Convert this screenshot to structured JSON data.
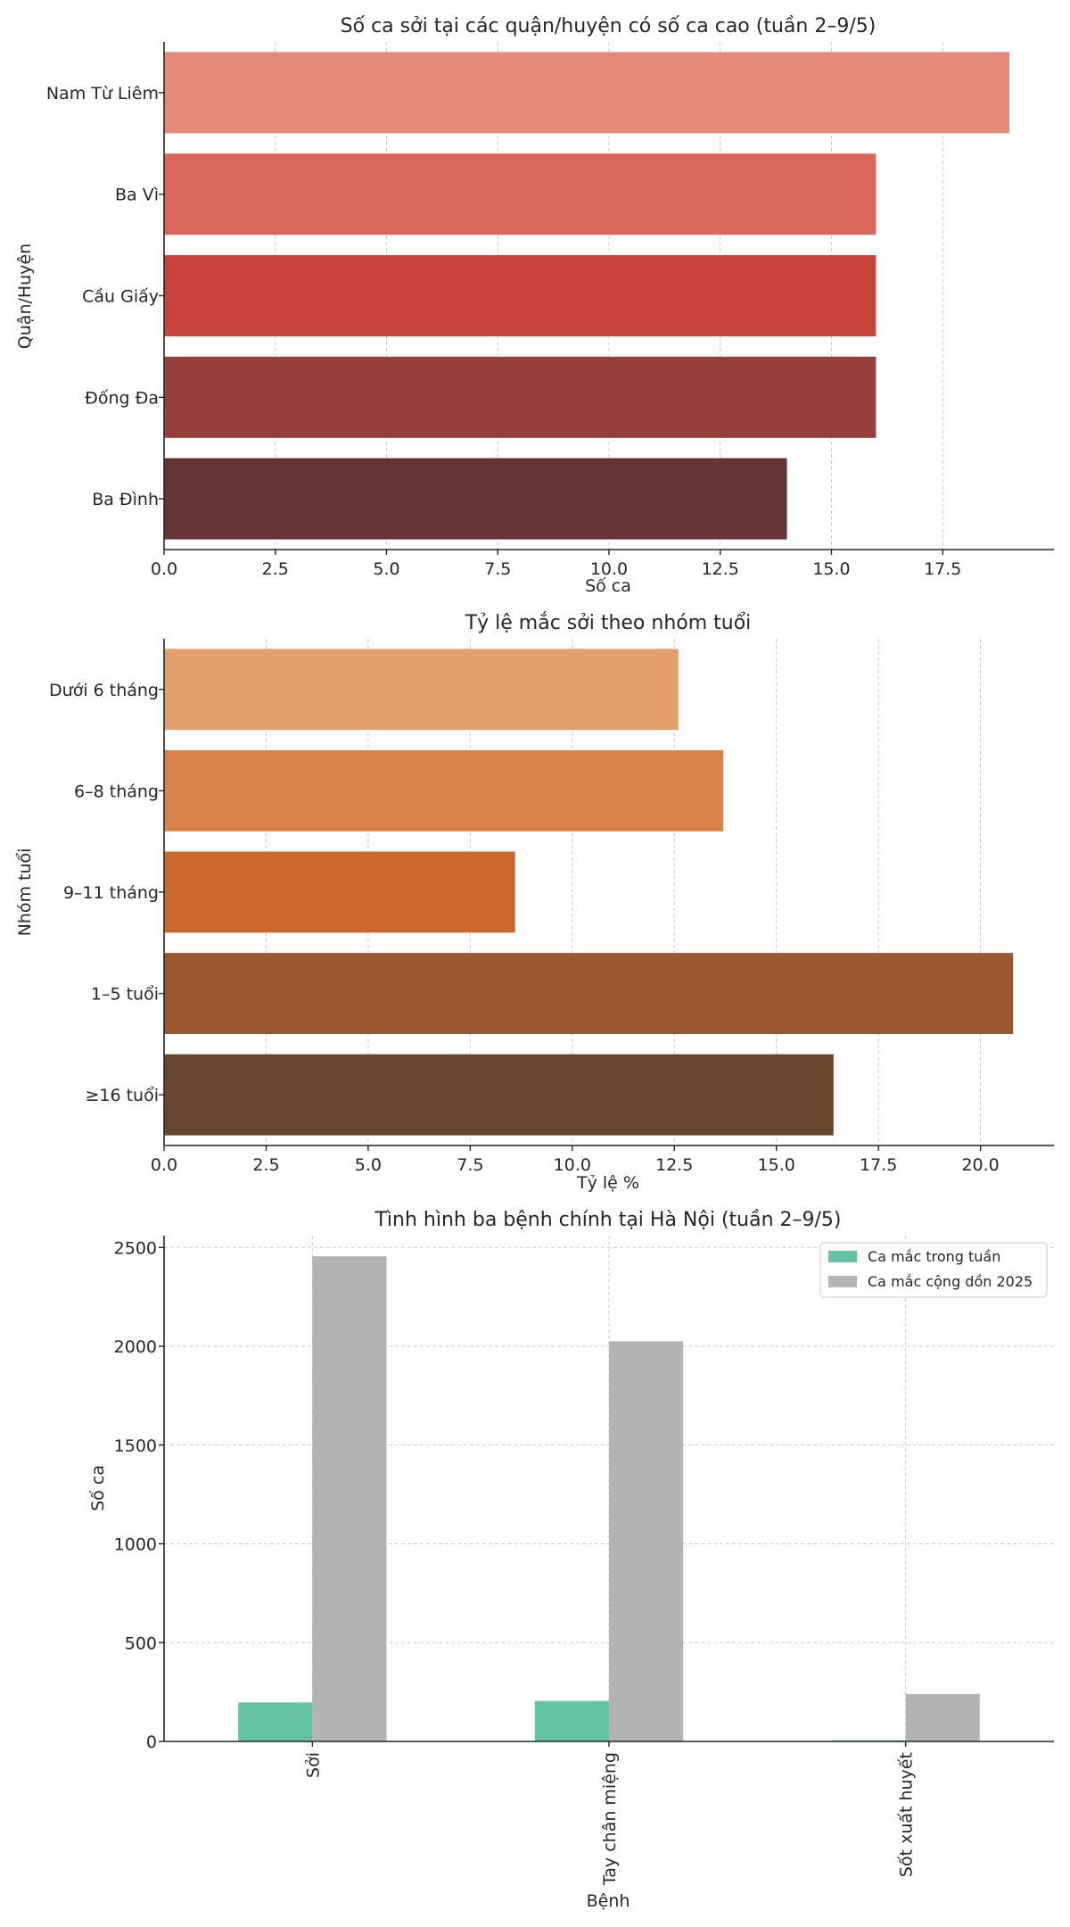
{
  "chart_data": [
    {
      "type": "bar",
      "orientation": "horizontal",
      "title": "Số ca sởi tại các quận/huyện có số ca cao (tuần 2–9/5)",
      "xlabel": "Số ca",
      "ylabel": "Quận/Huyện",
      "categories": [
        "Nam Từ Liêm",
        "Ba Vì",
        "Cầu Giấy",
        "Đống Đa",
        "Ba Đình"
      ],
      "values": [
        19,
        16,
        16,
        16,
        14
      ],
      "colors": [
        "#e38a7a",
        "#da675c",
        "#c8443d",
        "#983e3a",
        "#653536"
      ],
      "xlim": [
        0,
        20
      ],
      "xticks": [
        0,
        2.5,
        5,
        7.5,
        10,
        12.5,
        15,
        17.5
      ],
      "xtick_labels": [
        "0.0",
        "2.5",
        "5.0",
        "7.5",
        "10.0",
        "12.5",
        "15.0",
        "17.5"
      ],
      "grid": "x"
    },
    {
      "type": "bar",
      "orientation": "horizontal",
      "title": "Tỷ lệ mắc sởi theo nhóm tuổi",
      "xlabel": "Tỷ lệ %",
      "ylabel": "Nhóm tuổi",
      "categories": [
        "Dưới 6 tháng",
        "6–8 tháng",
        "9–11 tháng",
        "1–5 tuổi",
        "≥16 tuổi"
      ],
      "values": [
        12.6,
        13.7,
        8.6,
        20.8,
        16.4
      ],
      "colors": [
        "#e49f6e",
        "#d9824b",
        "#cb682c",
        "#98572e",
        "#66462f"
      ],
      "xlim": [
        0,
        21.8
      ],
      "xticks": [
        0,
        2.5,
        5,
        7.5,
        10,
        12.5,
        15,
        17.5,
        20
      ],
      "xtick_labels": [
        "0.0",
        "2.5",
        "5.0",
        "7.5",
        "10.0",
        "12.5",
        "15.0",
        "17.5",
        "20.0"
      ],
      "grid": "x"
    },
    {
      "type": "bar",
      "orientation": "vertical",
      "title": "Tình hình ba bệnh chính tại Hà Nội (tuần 2–9/5)",
      "xlabel": "Bệnh",
      "ylabel": "Số ca",
      "categories": [
        "Sởi",
        "Tay chân miệng",
        "Sốt xuất huyết"
      ],
      "series": [
        {
          "name": "Ca mắc trong tuần",
          "values": [
            197,
            205,
            6
          ],
          "color": "#66c2a5"
        },
        {
          "name": "Ca mắc cộng dồn 2025",
          "values": [
            2455,
            2025,
            240
          ],
          "color": "#b3b3b3"
        }
      ],
      "ylim": [
        0,
        2560
      ],
      "yticks": [
        0,
        500,
        1000,
        1500,
        2000,
        2500
      ],
      "legend": "top-right",
      "grid": "both"
    }
  ]
}
